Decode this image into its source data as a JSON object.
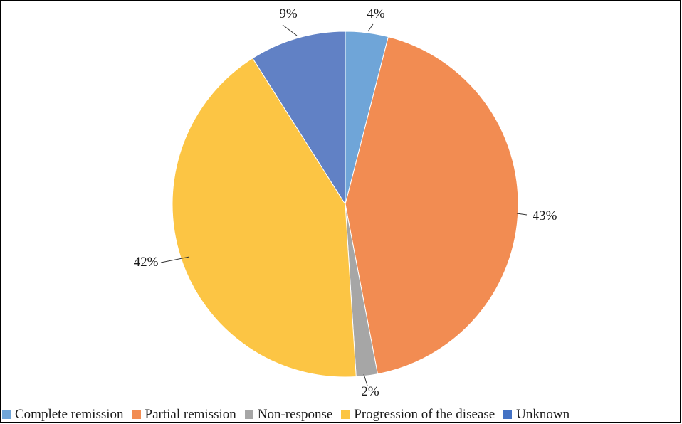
{
  "chart_data": {
    "type": "pie",
    "title": "",
    "categories": [
      "Complete remission",
      "Partial remission",
      "Non-response",
      "Progression of the disease",
      "Unknown"
    ],
    "values": [
      4,
      43,
      2,
      42,
      9
    ],
    "data_labels": [
      "4%",
      "43%",
      "2%",
      "42%",
      "9%"
    ],
    "colors": [
      "#6fa5d8",
      "#f28c52",
      "#a6a6a6",
      "#fcc544",
      "#6181c5"
    ],
    "legend_position": "bottom",
    "start_angle_deg": 0,
    "direction": "clockwise"
  },
  "legend": {
    "items": [
      {
        "label": "Complete remission",
        "color": "#6fa5d8"
      },
      {
        "label": "Partial remission",
        "color": "#f28c52"
      },
      {
        "label": "Non-response",
        "color": "#a6a6a6"
      },
      {
        "label": "Progression of the disease",
        "color": "#fcc544"
      },
      {
        "label": "Unknown",
        "color": "#4472c4"
      }
    ]
  }
}
